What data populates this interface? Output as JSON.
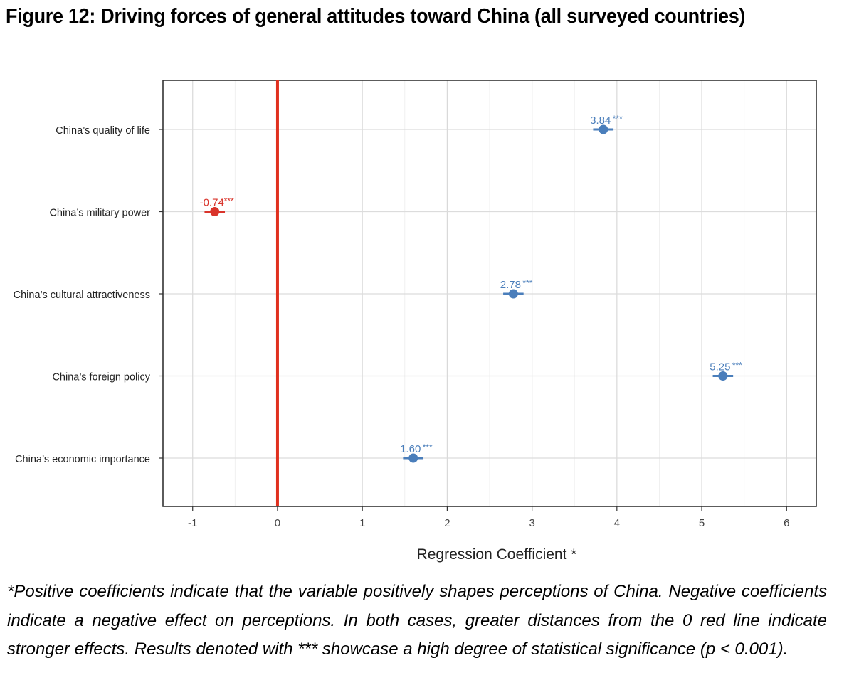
{
  "title": "Figure 12:  Driving forces of general attitudes toward China (all surveyed countries)",
  "chart_data": {
    "type": "scatter",
    "xlabel": "Regression Coefficient *",
    "xlim": [
      -1.35,
      6.35
    ],
    "x_ticks": [
      -1,
      0,
      1,
      2,
      3,
      4,
      5,
      6
    ],
    "reference_line": {
      "x": 0,
      "color": "#e0301e"
    },
    "grid": true,
    "categories": [
      "China’s quality of life",
      "China’s military power",
      "China’s cultural attractiveness",
      "China’s foreign policy",
      "China’s economic importance"
    ],
    "values": [
      3.84,
      -0.74,
      2.78,
      5.25,
      1.6
    ],
    "ci_low": [
      3.72,
      -0.86,
      2.66,
      5.13,
      1.48
    ],
    "ci_high": [
      3.96,
      -0.62,
      2.9,
      5.37,
      1.72
    ],
    "labels": [
      "3.84",
      "-0.74",
      "2.78",
      "5.25",
      "1.60"
    ],
    "significance": [
      "***",
      "***",
      "***",
      "***",
      "***"
    ],
    "colors": [
      "#4a7ebb",
      "#d9342b",
      "#4a7ebb",
      "#4a7ebb",
      "#4a7ebb"
    ]
  },
  "footnote": "*Positive coefficients indicate that the variable positively shapes perceptions of China. Negative coefficients indicate a negative effect on perceptions. In both cases, greater distances from the 0 red line indicate stronger effects. Results denoted with *** showcase a high degree of statistical significance (p < 0.001)."
}
